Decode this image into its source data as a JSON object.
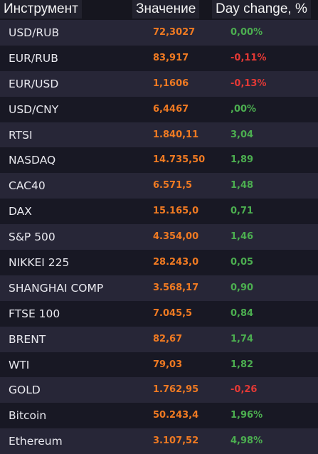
{
  "header": {
    "instrument_label": "Инструмент",
    "value_label": "Значение",
    "change_label": "Day change, %"
  },
  "colors": {
    "background": "#16161f",
    "row_light": "#272637",
    "row_dark": "#181824",
    "value": "#f07a22",
    "positive": "#4caf50",
    "negative": "#e53935"
  },
  "rows": [
    {
      "name": "USD/RUB",
      "value": "72,3027",
      "change": "0,00%",
      "trend": "positive"
    },
    {
      "name": "EUR/RUB",
      "value": "83,917",
      "change": "-0,11%",
      "trend": "negative"
    },
    {
      "name": "EUR/USD",
      "value": "1,1606",
      "change": "-0,13%",
      "trend": "negative"
    },
    {
      "name": "USD/CNY",
      "value": "6,4467",
      "change": ",00%",
      "trend": "positive"
    },
    {
      "name": "RTSI",
      "value": "1.840,11",
      "change": "3,04",
      "trend": "positive"
    },
    {
      "name": "NASDAQ",
      "value": "14.735,50",
      "change": "1,89",
      "trend": "positive"
    },
    {
      "name": "CAC40",
      "value": "6.571,5",
      "change": "1,48",
      "trend": "positive"
    },
    {
      "name": "DAX",
      "value": "15.165,0",
      "change": "0,71",
      "trend": "positive"
    },
    {
      "name": "S&P 500",
      "value": "4.354,00",
      "change": "1,46",
      "trend": "positive"
    },
    {
      "name": "NIKKEI 225",
      "value": "28.243,0",
      "change": "0,05",
      "trend": "positive"
    },
    {
      "name": "SHANGHAI COMP",
      "value": "3.568,17",
      "change": "0,90",
      "trend": "positive"
    },
    {
      "name": "FTSE 100",
      "value": "7.045,5",
      "change": "0,84",
      "trend": "positive"
    },
    {
      "name": "BRENT",
      "value": "82,67",
      "change": "1,74",
      "trend": "positive"
    },
    {
      "name": "WTI",
      "value": "79,03",
      "change": "1,82",
      "trend": "positive"
    },
    {
      "name": "GOLD",
      "value": "1.762,95",
      "change": "-0,26",
      "trend": "negative"
    },
    {
      "name": "Bitcoin",
      "value": "50.243,4",
      "change": "1,96%",
      "trend": "positive"
    },
    {
      "name": "Ethereum",
      "value": "3.107,52",
      "change": "4,98%",
      "trend": "positive"
    }
  ]
}
